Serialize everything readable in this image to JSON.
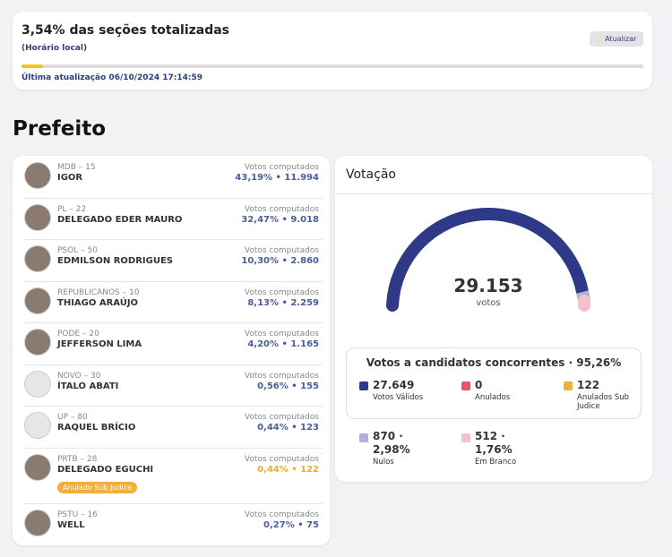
{
  "status": {
    "title": "3,54% das seções totalizadas",
    "subtitle": "(Horário local)",
    "button": "Atualizar",
    "updated": "Última atualização 06/10/2024 17:14:59"
  },
  "section": "Prefeito",
  "candidates": [
    {
      "party": "MDB – 15",
      "name": "IGOR",
      "label": "Votos computados",
      "votes": "43,19% • 11.994"
    },
    {
      "party": "PL – 22",
      "name": "DELEGADO EDER MAURO",
      "label": "Votos computados",
      "votes": "32,47% • 9.018"
    },
    {
      "party": "PSOL – 50",
      "name": "EDMILSON RODRIGUES",
      "label": "Votos computados",
      "votes": "10,30% • 2.860"
    },
    {
      "party": "REPUBLICANOS – 10",
      "name": "THIAGO ARAÚJO",
      "label": "Votos computados",
      "votes": "8,13% • 2.259"
    },
    {
      "party": "PODE – 20",
      "name": "JEFFERSON LIMA",
      "label": "Votos computados",
      "votes": "4,20% • 1.165"
    },
    {
      "party": "NOVO – 30",
      "name": "ÍTALO ABATI",
      "label": "Votos computados",
      "votes": "0,56% • 155"
    },
    {
      "party": "UP – 80",
      "name": "RAQUEL BRÍCIO",
      "label": "Votos computados",
      "votes": "0,44% • 123"
    },
    {
      "party": "PRTB – 28",
      "name": "DELEGADO EGUCHI",
      "label": "Votos computados",
      "votes": "0,44% • 122",
      "badge": "Anulado Sub Judice"
    },
    {
      "party": "PSTU – 16",
      "name": "WELL",
      "label": "Votos computados",
      "votes": "0,27% • 75"
    }
  ],
  "votacao": {
    "title": "Votação",
    "total": "29.153",
    "unit": "votos",
    "box_title": "Votos a candidatos concorrentes · 95,26%",
    "items": [
      {
        "value": "27.649",
        "label": "Votos Válidos",
        "color": "#2e3a87"
      },
      {
        "value": "0",
        "label": "Anulados",
        "color": "#e0566a"
      },
      {
        "value": "122",
        "label": "Anulados Sub Judice",
        "color": "#f0b040"
      }
    ],
    "others": [
      {
        "value": "870 ·",
        "pct": "2,98%",
        "label": "Nulos",
        "color": "#b3aed6"
      },
      {
        "value": "512 ·",
        "pct": "1,76%",
        "label": "Em Branco",
        "color": "#f4c0cc"
      }
    ]
  }
}
